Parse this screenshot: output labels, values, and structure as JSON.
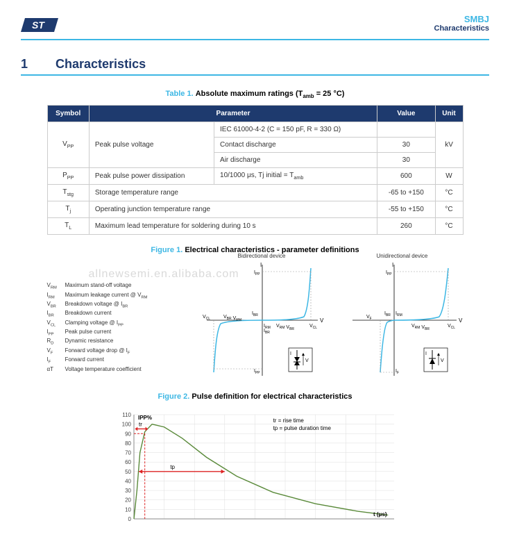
{
  "header": {
    "product": "SMBJ",
    "section": "Characteristics"
  },
  "section": {
    "num": "1",
    "title": "Characteristics"
  },
  "table1": {
    "caption_id": "Table 1.",
    "caption_txt": "Absolute maximum ratings (T",
    "caption_sub": "amb",
    "caption_tail": " = 25 °C)",
    "headers": {
      "symbol": "Symbol",
      "param": "Parameter",
      "value": "Value",
      "unit": "Unit"
    },
    "r1": {
      "sym": "V",
      "sub": "PP",
      "p": "Peak pulse voltage",
      "p1": "IEC 61000-4-2 (C = 150 pF, R = 330 Ω)",
      "p2": "Contact discharge",
      "p3": "Air discharge",
      "v2": "30",
      "v3": "30",
      "u": "kV"
    },
    "r2": {
      "sym": "P",
      "sub": "PP",
      "p": "Peak pulse power dissipation",
      "cond": "10/1000 μs, Tj initial = T",
      "cond_sub": "amb",
      "v": "600",
      "u": "W"
    },
    "r3": {
      "sym": "T",
      "sub": "stg",
      "p": "Storage temperature range",
      "v": "-65 to +150",
      "u": "°C"
    },
    "r4": {
      "sym": "T",
      "sub": "j",
      "p": "Operating junction temperature range",
      "v": "-55 to +150",
      "u": "°C"
    },
    "r5": {
      "sym": "T",
      "sub": "L",
      "p": "Maximum lead temperature for soldering during 10 s",
      "v": "260",
      "u": "°C"
    }
  },
  "fig1": {
    "caption_id": "Figure 1.",
    "caption_txt": "Electrical characteristics - parameter definitions",
    "watermark": "allnewsemi.en.alibaba.com",
    "bidi": "Bidirectional device",
    "uni": "Unidirectional device",
    "defs": [
      {
        "s": "V",
        "sub": "RM",
        "t": "Maximum stand-off voltage"
      },
      {
        "s": "I",
        "sub": "RM",
        "t": "Maximum leakage current @ V",
        "tsub": "RM"
      },
      {
        "s": "V",
        "sub": "BR",
        "t": "Breakdown voltage @ I",
        "tsub": "BR"
      },
      {
        "s": "I",
        "sub": "BR",
        "t": "Breakdown current"
      },
      {
        "s": "V",
        "sub": "CL",
        "t": "Clamping voltage @ I",
        "tsub": "PP"
      },
      {
        "s": "I",
        "sub": "PP",
        "t": "Peak pulse current"
      },
      {
        "s": "R",
        "sub": "D",
        "t": "Dynamic resistance"
      },
      {
        "s": "V",
        "sub": "F",
        "t": "Forward voltage drop @ I",
        "tsub": "F"
      },
      {
        "s": "I",
        "sub": "F",
        "t": "Forward current"
      },
      {
        "s": "αT",
        "sub": "",
        "t": "Voltage temperature coefficient"
      }
    ],
    "lbl": {
      "I": "I",
      "V": "V",
      "IPP": "I",
      "IPP_sub": "PP",
      "VCL": "V",
      "VCL_sub": "CL",
      "VBR": "V",
      "VBR_sub": "BR",
      "VRM": "V",
      "VRM_sub": "RM",
      "IRM": "I",
      "IRM_sub": "RM",
      "IBR": "I",
      "IBR_sub": "BR",
      "VF": "V",
      "VF_sub": "F",
      "IF": "I",
      "IF_sub": "F"
    },
    "colors": {
      "curve": "#3db7e4",
      "dash": "#999",
      "axis": "#000"
    }
  },
  "fig2": {
    "caption_id": "Figure 2.",
    "caption_txt": "Pulse definition for electrical characteristics",
    "yvals": [
      "0",
      "10",
      "20",
      "30",
      "40",
      "50",
      "60",
      "70",
      "80",
      "90",
      "100",
      "110"
    ],
    "ylabel": "IPP%",
    "xlabel": "t (μs)",
    "notes1": "tr = rise time",
    "notes2": "tp = pulse duration time",
    "tr": "tr",
    "tp": "tp",
    "curve": [
      [
        0,
        0
      ],
      [
        5,
        30
      ],
      [
        10,
        70
      ],
      [
        18,
        92
      ],
      [
        30,
        100
      ],
      [
        50,
        97
      ],
      [
        80,
        85
      ],
      [
        120,
        65
      ],
      [
        170,
        45
      ],
      [
        230,
        28
      ],
      [
        300,
        16
      ],
      [
        370,
        8
      ],
      [
        420,
        4
      ]
    ],
    "colors": {
      "curve": "#5a8a3a",
      "grid": "#ddd",
      "arrow": "#d22",
      "axis": "#888"
    },
    "ylim": [
      0,
      110
    ],
    "xlim": [
      0,
      430
    ]
  }
}
